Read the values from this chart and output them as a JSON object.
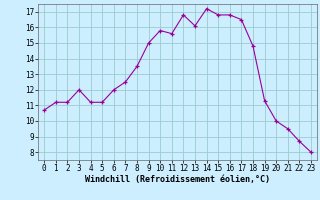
{
  "x": [
    0,
    1,
    2,
    3,
    4,
    5,
    6,
    7,
    8,
    9,
    10,
    11,
    12,
    13,
    14,
    15,
    16,
    17,
    18,
    19,
    20,
    21,
    22,
    23
  ],
  "y": [
    10.7,
    11.2,
    11.2,
    12.0,
    11.2,
    11.2,
    12.0,
    12.5,
    13.5,
    15.0,
    15.8,
    15.6,
    16.8,
    16.1,
    17.2,
    16.8,
    16.8,
    16.5,
    14.8,
    11.3,
    10.0,
    9.5,
    8.7,
    8.0
  ],
  "line_color": "#990099",
  "marker": "+",
  "marker_size": 3,
  "bg_color": "#cceeff",
  "grid_color": "#99cccc",
  "xlabel": "Windchill (Refroidissement éolien,°C)",
  "xlim": [
    -0.5,
    23.5
  ],
  "ylim": [
    7.5,
    17.5
  ],
  "yticks": [
    8,
    9,
    10,
    11,
    12,
    13,
    14,
    15,
    16,
    17
  ],
  "xticks": [
    0,
    1,
    2,
    3,
    4,
    5,
    6,
    7,
    8,
    9,
    10,
    11,
    12,
    13,
    14,
    15,
    16,
    17,
    18,
    19,
    20,
    21,
    22,
    23
  ],
  "xlabel_fontsize": 6,
  "tick_fontsize": 5.5
}
